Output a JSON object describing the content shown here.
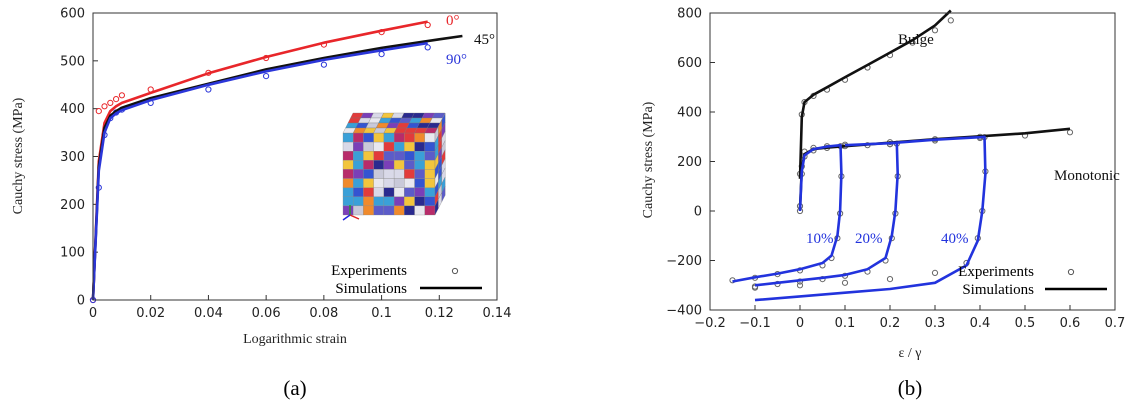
{
  "chart_data": [
    {
      "type": "line",
      "panel_label": "(a)",
      "xlabel": "Logarithmic strain",
      "ylabel": "Cauchy stress (MPa)",
      "xlim": [
        0,
        0.14
      ],
      "ylim": [
        0,
        600
      ],
      "xticks": [
        0,
        0.02,
        0.04,
        0.06,
        0.08,
        0.1,
        0.12,
        0.14
      ],
      "xtick_labels": [
        "0",
        "0.02",
        "0.04",
        "0.06",
        "0.08",
        "0.1",
        "0.12",
        "0.14"
      ],
      "yticks": [
        0,
        100,
        200,
        300,
        400,
        500,
        600
      ],
      "ytick_labels": [
        "0",
        "100",
        "200",
        "300",
        "400",
        "500",
        "600"
      ],
      "grid": false,
      "legend": {
        "placement": "bottom-right",
        "entries": [
          {
            "label": "Experiments",
            "marker": "circle"
          },
          {
            "label": "Simulations",
            "marker": "line"
          }
        ]
      },
      "series": [
        {
          "name": "0°",
          "color": "#e8262a",
          "x": [
            0,
            0.002,
            0.004,
            0.006,
            0.008,
            0.01,
            0.02,
            0.04,
            0.06,
            0.08,
            0.1,
            0.116
          ],
          "simulation": [
            0,
            290,
            370,
            395,
            405,
            412,
            433,
            474,
            508,
            538,
            563,
            582
          ],
          "experiment": [
            0,
            395,
            405,
            412,
            420,
            428,
            440,
            475,
            506,
            534,
            560,
            575
          ]
        },
        {
          "name": "45°",
          "color": "#111111",
          "x": [
            0,
            0.002,
            0.004,
            0.006,
            0.008,
            0.01,
            0.02,
            0.04,
            0.06,
            0.08,
            0.1,
            0.12,
            0.128
          ],
          "simulation": [
            0,
            280,
            360,
            385,
            395,
            402,
            422,
            452,
            482,
            506,
            527,
            545,
            552
          ],
          "experiment": []
        },
        {
          "name": "90°",
          "color": "#2b36d9",
          "x": [
            0,
            0.002,
            0.004,
            0.006,
            0.008,
            0.01,
            0.02,
            0.04,
            0.06,
            0.08,
            0.1,
            0.116
          ],
          "simulation": [
            0,
            270,
            350,
            380,
            390,
            397,
            418,
            450,
            478,
            502,
            522,
            537
          ],
          "experiment": [
            0,
            235,
            345,
            380,
            392,
            398,
            412,
            440,
            468,
            492,
            514,
            528
          ]
        }
      ],
      "annotations": [
        "0°",
        "45°",
        "90°"
      ],
      "inset": "microstructure-cube"
    },
    {
      "type": "line",
      "panel_label": "(b)",
      "xlabel": "ε / γ",
      "ylabel": "Cauchy stress (MPa)",
      "xlim": [
        -0.2,
        0.7
      ],
      "ylim": [
        -400,
        800
      ],
      "xticks": [
        -0.2,
        -0.1,
        0,
        0.1,
        0.2,
        0.3,
        0.4,
        0.5,
        0.6,
        0.7
      ],
      "xtick_labels": [
        "−0.2",
        "−0.1",
        "0",
        "0.1",
        "0.2",
        "0.3",
        "0.4",
        "0.5",
        "0.6",
        "0.7"
      ],
      "yticks": [
        -400,
        -200,
        0,
        200,
        400,
        600,
        800
      ],
      "ytick_labels": [
        "−400",
        "−200",
        "0",
        "200",
        "400",
        "600",
        "800"
      ],
      "grid": false,
      "legend": {
        "placement": "bottom-right",
        "entries": [
          {
            "label": "Experiments",
            "marker": "circle"
          },
          {
            "label": "Simulations",
            "marker": "line"
          }
        ]
      },
      "series": [
        {
          "name": "Bulge",
          "color": "#111111",
          "x": [
            0,
            0.004,
            0.01,
            0.03,
            0.06,
            0.1,
            0.15,
            0.2,
            0.25,
            0.3,
            0.335
          ],
          "simulation": [
            130,
            380,
            440,
            470,
            500,
            540,
            590,
            640,
            690,
            750,
            810
          ],
          "experiment": [
            150,
            390,
            440,
            465,
            490,
            530,
            580,
            630,
            680,
            730,
            770
          ]
        },
        {
          "name": "Monotonic",
          "color": "#111111",
          "x": [
            0,
            0.004,
            0.01,
            0.03,
            0.06,
            0.1,
            0.2,
            0.3,
            0.4,
            0.5,
            0.6
          ],
          "simulation": [
            10,
            170,
            230,
            250,
            256,
            262,
            276,
            290,
            302,
            314,
            332
          ],
          "experiment": [
            20,
            180,
            240,
            255,
            262,
            268,
            278,
            290,
            300,
            305,
            318
          ]
        },
        {
          "name": "10%",
          "color": "#2233dd",
          "x": [
            0,
            0.004,
            0.01,
            0.03,
            0.06,
            0.09,
            0.092,
            0.089,
            0.083,
            0.07,
            0.05,
            0,
            -0.05,
            -0.1,
            -0.15
          ],
          "simulation": [
            0,
            160,
            225,
            250,
            260,
            266,
            150,
            0,
            -100,
            -180,
            -210,
            -235,
            -253,
            -268,
            -285
          ],
          "experiment": [
            0,
            150,
            220,
            245,
            255,
            262,
            140,
            -10,
            -110,
            -190,
            -220,
            -240,
            -255,
            -270,
            -280
          ]
        },
        {
          "name": "20%",
          "color": "#2233dd",
          "x": [
            0.1,
            0.15,
            0.2,
            0.215,
            0.217,
            0.212,
            0.204,
            0.19,
            0.15,
            0.1,
            0.05,
            0,
            -0.05,
            -0.1
          ],
          "simulation": [
            266,
            270,
            274,
            276,
            150,
            0,
            -100,
            -190,
            -235,
            -258,
            -270,
            -280,
            -290,
            -300
          ],
          "experiment": [
            262,
            266,
            270,
            272,
            140,
            -10,
            -110,
            -200,
            -245,
            -262,
            -275,
            -285,
            -295,
            -305
          ]
        },
        {
          "name": "40%",
          "color": "#2233dd",
          "x": [
            0.2,
            0.3,
            0.4,
            0.41,
            0.412,
            0.405,
            0.395,
            0.37,
            0.3,
            0.2,
            0.1,
            0,
            -0.1
          ],
          "simulation": [
            274,
            288,
            298,
            300,
            150,
            0,
            -120,
            -220,
            -290,
            -315,
            -330,
            -345,
            -360
          ],
          "experiment": [
            270,
            285,
            295,
            298,
            160,
            0,
            -110,
            -210,
            -250,
            -275,
            -290,
            -300,
            -310
          ]
        }
      ],
      "annotations": [
        "Bulge",
        "Monotonic",
        "10%",
        "20%",
        "40%"
      ]
    }
  ]
}
